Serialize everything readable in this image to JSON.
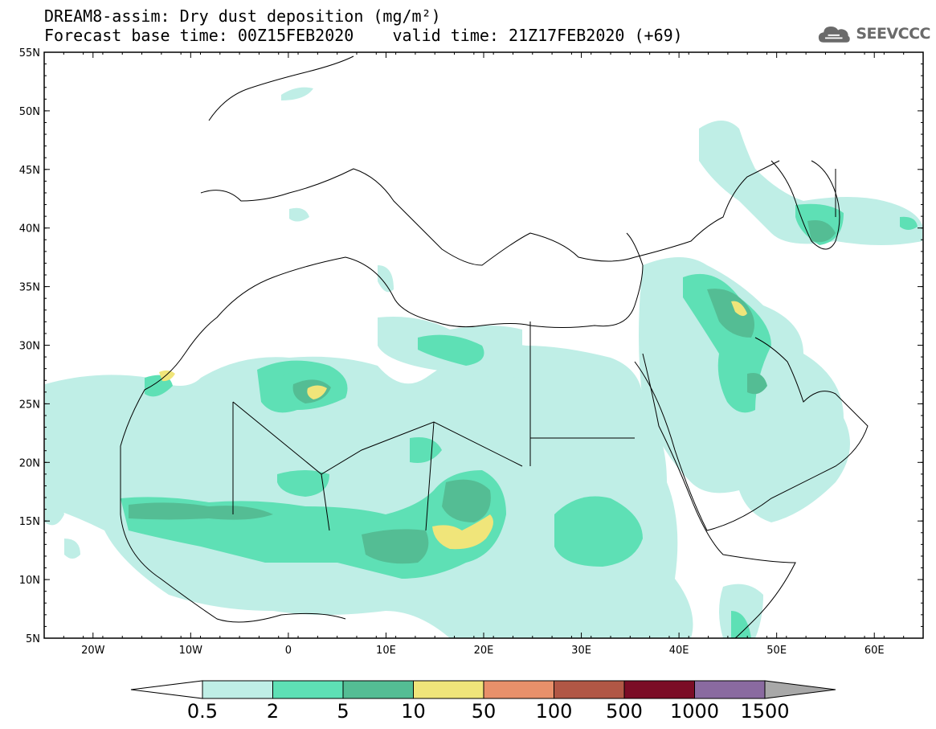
{
  "header": {
    "title": "DREAM8-assim: Dry dust deposition (mg/m²)",
    "base_time_label": "Forecast base time: 00Z15FEB2020",
    "valid_time_label": "valid time: 21Z17FEB2020 (+69)",
    "logo_text": "SEEVCCC"
  },
  "map": {
    "lat_labels": [
      "55N",
      "50N",
      "45N",
      "40N",
      "35N",
      "30N",
      "25N",
      "20N",
      "15N",
      "10N",
      "5N"
    ],
    "lon_labels": [
      "20W",
      "10W",
      "0",
      "10E",
      "20E",
      "30E",
      "40E",
      "50E",
      "60E"
    ],
    "extent": {
      "lon_min": -25,
      "lon_max": 65,
      "lat_min": 5,
      "lat_max": 55
    }
  },
  "colorbar": {
    "labels": [
      "0.5",
      "2",
      "5",
      "10",
      "50",
      "100",
      "500",
      "1000",
      "1500"
    ],
    "colors": [
      "#bfeee6",
      "#5ee0b5",
      "#54bd94",
      "#f0e57a",
      "#e8906a",
      "#b15745",
      "#7b0d26",
      "#8a6aa0"
    ],
    "under_color": "#ffffff",
    "over_color": "#a8a8a8"
  },
  "legend_levels": [
    "0.5",
    "2",
    "5",
    "10",
    "50",
    "100",
    "500",
    "1000",
    "1500"
  ]
}
